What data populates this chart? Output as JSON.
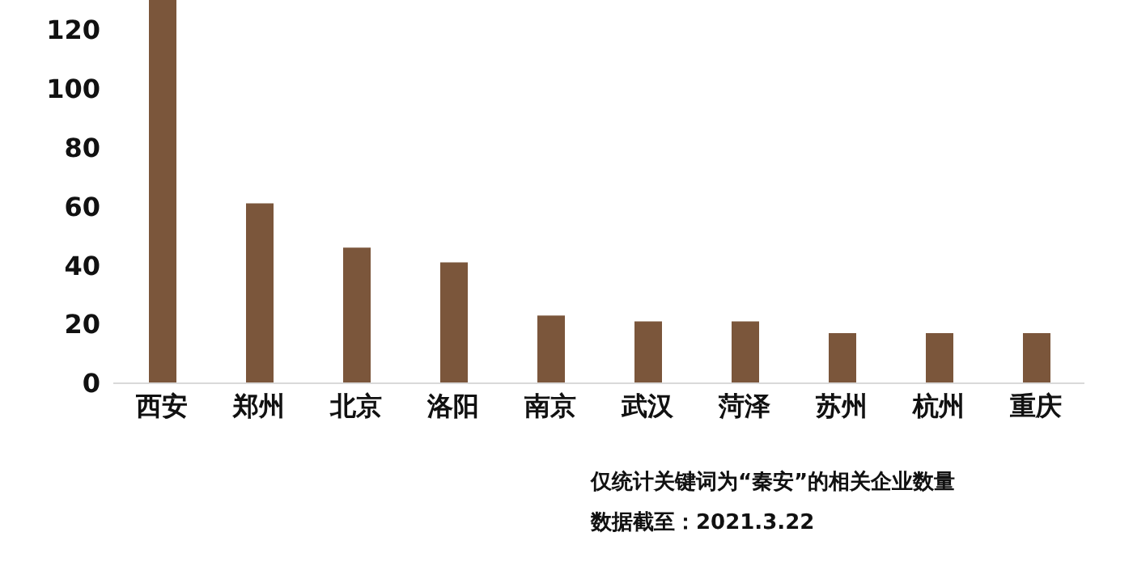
{
  "chart_data": {
    "type": "bar",
    "categories": [
      "西安",
      "郑州",
      "北京",
      "洛阳",
      "南京",
      "武汉",
      "菏泽",
      "苏州",
      "杭州",
      "重庆"
    ],
    "values": [
      130,
      61,
      46,
      41,
      23,
      21,
      21,
      17,
      17,
      17
    ],
    "color": "#7b563b",
    "ylim": [
      0,
      130
    ],
    "yticks": [
      0,
      20,
      40,
      60,
      80,
      100,
      120
    ],
    "grid": false,
    "annotations": [
      "仅统计关键词为“秦安”的相关企业数量",
      "数据截至：2021.3.22"
    ]
  }
}
